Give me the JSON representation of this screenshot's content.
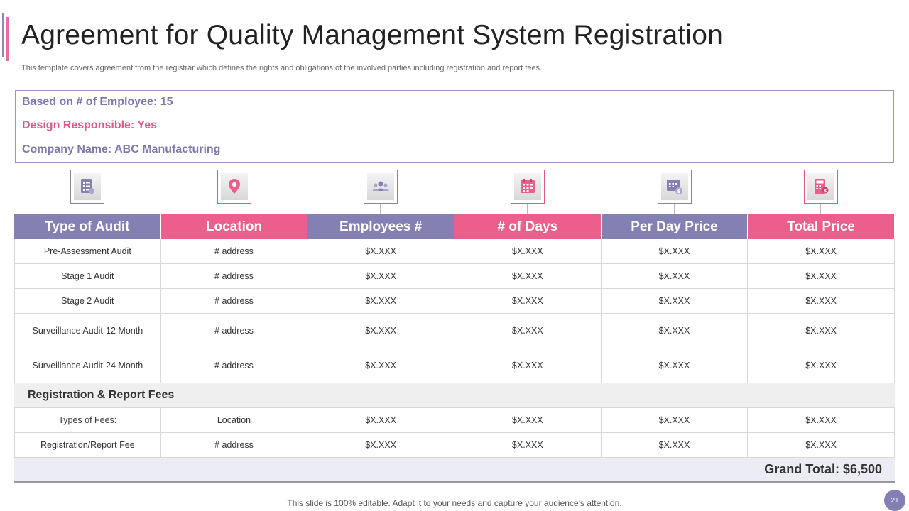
{
  "title": "Agreement for Quality Management System Registration",
  "subtitle": "This template covers agreement from the registrar which defines the rights and obligations of the involved  parties including registration and report fees.",
  "info": {
    "employees": "Based on # of Employee: 15",
    "design": "Design Responsible: Yes",
    "company": "Company Name: ABC Manufacturing"
  },
  "icons": [
    "checklist-icon",
    "location-pin-icon",
    "people-group-icon",
    "calendar-icon",
    "calendar-dollar-icon",
    "calculator-dollar-icon"
  ],
  "colors": {
    "purple": "#8580b3",
    "pink": "#ec5f8c"
  },
  "table": {
    "headers": [
      "Type of Audit",
      "Location",
      "Employees #",
      "# of Days",
      "Per Day Price",
      "Total Price"
    ],
    "rows": [
      [
        "Pre-Assessment Audit",
        "# address",
        "$X.XXX",
        "$X.XXX",
        "$X.XXX",
        "$X.XXX"
      ],
      [
        "Stage 1 Audit",
        "# address",
        "$X.XXX",
        "$X.XXX",
        "$X.XXX",
        "$X.XXX"
      ],
      [
        "Stage 2 Audit",
        "# address",
        "$X.XXX",
        "$X.XXX",
        "$X.XXX",
        "$X.XXX"
      ],
      [
        "Surveillance  Audit-12 Month",
        "# address",
        "$X.XXX",
        "$X.XXX",
        "$X.XXX",
        "$X.XXX"
      ],
      [
        "Surveillance  Audit-24 Month",
        "# address",
        "$X.XXX",
        "$X.XXX",
        "$X.XXX",
        "$X.XXX"
      ]
    ],
    "section_title": "Registration  &  Report Fees",
    "fee_rows": [
      [
        "Types of Fees:",
        "Location",
        "$X.XXX",
        "$X.XXX",
        "$X.XXX",
        "$X.XXX"
      ],
      [
        "Registration/Report  Fee",
        "# address",
        "$X.XXX",
        "$X.XXX",
        "$X.XXX",
        "$X.XXX"
      ]
    ],
    "grand_total": "Grand Total: $6,500"
  },
  "footer": "This slide is 100% editable. Adapt it to your needs and capture your audience's attention.",
  "page_number": "21"
}
